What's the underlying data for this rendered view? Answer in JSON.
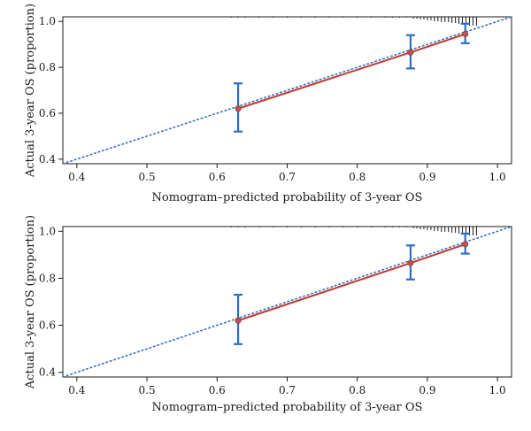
{
  "colors": {
    "reference": "#2f6fc2",
    "fit": "#c0392b",
    "errorbar": "#2c6fbf",
    "point": "#c0504d",
    "axis": "#1a1a1a"
  },
  "chart_data": [
    {
      "type": "scatter",
      "title": "",
      "xlabel": "Nomogram–predicted probability of 3-year OS",
      "ylabel": "Actual 3-year OS (proportion)",
      "xlim": [
        0.38,
        1.02
      ],
      "ylim": [
        0.38,
        1.02
      ],
      "xticks": [
        "0.4",
        "0.5",
        "0.6",
        "0.7",
        "0.8",
        "0.9",
        "1.0"
      ],
      "yticks": [
        "0.4",
        "0.6",
        "0.8",
        "1.0"
      ],
      "reference_line": "diagonal y = x (dotted)",
      "grid": false,
      "points": [
        {
          "x": 0.63,
          "y": 0.62,
          "lower": 0.52,
          "upper": 0.73
        },
        {
          "x": 0.876,
          "y": 0.865,
          "lower": 0.795,
          "upper": 0.94
        },
        {
          "x": 0.954,
          "y": 0.945,
          "lower": 0.905,
          "upper": 0.99
        }
      ],
      "rug_marks": "histogram of predicted values along the top border"
    },
    {
      "type": "scatter",
      "title": "",
      "xlabel": "Nomogram–predicted probability of 3-year OS",
      "ylabel": "Actual 3-year OS (proportion)",
      "xlim": [
        0.38,
        1.02
      ],
      "ylim": [
        0.38,
        1.02
      ],
      "xticks": [
        "0.4",
        "0.5",
        "0.6",
        "0.7",
        "0.8",
        "0.9",
        "1.0"
      ],
      "yticks": [
        "0.4",
        "0.6",
        "0.8",
        "1.0"
      ],
      "reference_line": "diagonal y = x (dotted)",
      "grid": false,
      "points": [
        {
          "x": 0.63,
          "y": 0.62,
          "lower": 0.52,
          "upper": 0.73
        },
        {
          "x": 0.876,
          "y": 0.865,
          "lower": 0.795,
          "upper": 0.94
        },
        {
          "x": 0.954,
          "y": 0.945,
          "lower": 0.905,
          "upper": 0.99
        }
      ],
      "rug_marks": "histogram of predicted values along the top border"
    }
  ]
}
